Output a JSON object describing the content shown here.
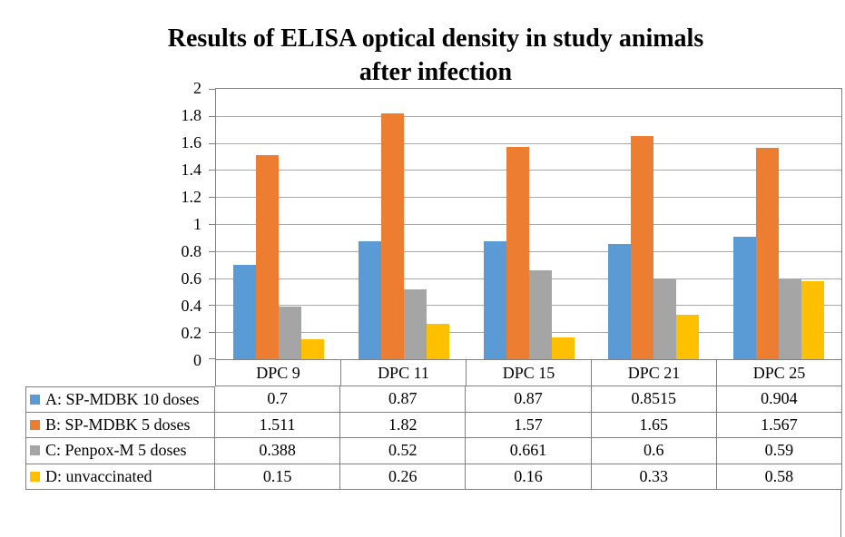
{
  "title": {
    "line1": "Results of ELISA optical density in study animals",
    "line2": "after infection"
  },
  "chart_data": {
    "type": "bar",
    "title": "Results of ELISA optical density in study animals after infection",
    "categories": [
      "DPC 9",
      "DPC 11",
      "DPC 15",
      "DPC 21",
      "DPC 25"
    ],
    "series": [
      {
        "name": "A: SP-MDBK 10 doses",
        "color": "#5B9BD5",
        "values": [
          "0.7",
          "0.87",
          "0.87",
          "0.8515",
          "0.904"
        ]
      },
      {
        "name": "B: SP-MDBK 5 doses",
        "color": "#ED7D31",
        "values": [
          "1.511",
          "1.82",
          "1.57",
          "1.65",
          "1.567"
        ]
      },
      {
        "name": "C: Penpox-M 5 doses",
        "color": "#A5A5A5",
        "values": [
          "0.388",
          "0.52",
          "0.661",
          "0.6",
          "0.59"
        ]
      },
      {
        "name": "D: unvaccinated",
        "color": "#FFC000",
        "values": [
          "0.15",
          "0.26",
          "0.16",
          "0.33",
          "0.58"
        ]
      }
    ],
    "xlabel": "",
    "ylabel": "",
    "ylim": [
      0,
      2
    ],
    "ytick_step": 0.2,
    "ytick_labels_top_to_bottom": [
      "2",
      "1.8",
      "1.6",
      "1.4",
      "1.2",
      "1",
      "0.8",
      "0.6",
      "0.4",
      "0.2",
      "0"
    ],
    "grid": true,
    "legend_position": "data-table-left",
    "data_table_shown": true
  },
  "colors": {
    "plot_border": "#808080",
    "gridline": "#a9a9a9",
    "table_border": "#808080",
    "text": "#000000",
    "background": "#ffffff",
    "series_blue": "#5B9BD5",
    "series_orange": "#ED7D31",
    "series_gray": "#A5A5A5",
    "series_yellow": "#FFC000"
  }
}
